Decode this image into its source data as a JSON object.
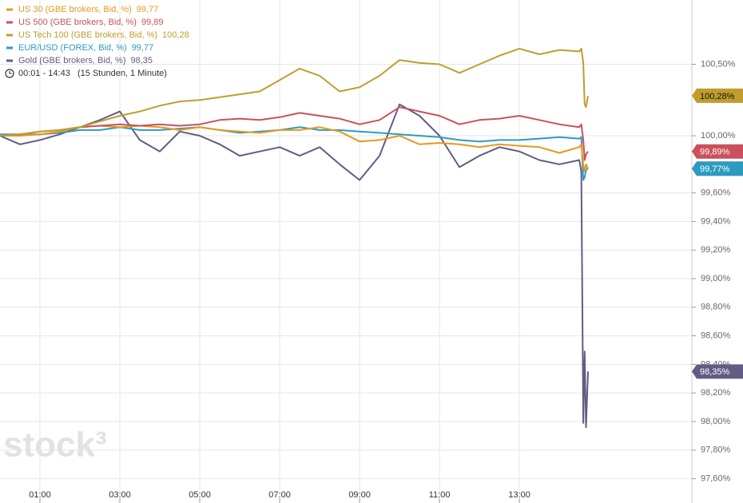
{
  "chart_data": {
    "type": "line",
    "time_range": "00:01 - 14:43",
    "time_span": "(15 Stunden, 1 Minute)",
    "watermark": "stock³",
    "x": [
      "00:00",
      "00:30",
      "01:00",
      "01:30",
      "02:00",
      "02:30",
      "03:00",
      "03:30",
      "04:00",
      "04:30",
      "05:00",
      "05:30",
      "06:00",
      "06:30",
      "07:00",
      "07:30",
      "08:00",
      "08:30",
      "09:00",
      "09:30",
      "10:00",
      "10:30",
      "11:00",
      "11:30",
      "12:00",
      "12:30",
      "13:00",
      "13:30",
      "14:00",
      "14:30",
      "14:33",
      "14:36",
      "14:38",
      "14:40",
      "14:43"
    ],
    "xlim": [
      "00:00",
      "17:19"
    ],
    "xticks": [
      "01:00",
      "03:00",
      "05:00",
      "07:00",
      "09:00",
      "11:00",
      "13:00"
    ],
    "ylim": [
      97.43,
      100.95
    ],
    "yticks": [
      {
        "value": 100.5,
        "label": "100,50%"
      },
      {
        "value": 100,
        "label": "100,00%"
      },
      {
        "value": 99.6,
        "label": "99,60%"
      },
      {
        "value": 99.4,
        "label": "99,40%"
      },
      {
        "value": 99.2,
        "label": "99,20%"
      },
      {
        "value": 99,
        "label": "99,00%"
      },
      {
        "value": 98.8,
        "label": "98,80%"
      },
      {
        "value": 98.6,
        "label": "98,60%"
      },
      {
        "value": 98.4,
        "label": "98,40%"
      },
      {
        "value": 98.2,
        "label": "98,20%"
      },
      {
        "value": 98,
        "label": "98,00%"
      },
      {
        "value": 97.8,
        "label": "97,80%"
      },
      {
        "value": 97.6,
        "label": "97,60%"
      }
    ],
    "grid": true,
    "series": [
      {
        "name": "US 30 (GBE brokers, Bid, %)",
        "legend_value": "99,77",
        "badge": "99,77%",
        "color": "#e8981e",
        "values": [
          100,
          100,
          100.01,
          100.03,
          100.06,
          100.07,
          100.06,
          100.07,
          100.06,
          100.04,
          100.06,
          100.04,
          100.03,
          100.02,
          100.04,
          100.04,
          100.06,
          100.03,
          99.96,
          99.97,
          100,
          99.94,
          99.95,
          99.94,
          99.92,
          99.94,
          99.93,
          99.92,
          99.88,
          99.92,
          99.94,
          99.8,
          99.75,
          99.8,
          99.77
        ]
      },
      {
        "name": "US 500 (GBE brokers, Bid, %)",
        "legend_value": "99,89",
        "badge": "99,89%",
        "color": "#c9505c",
        "values": [
          100,
          100.01,
          100.03,
          100.04,
          100.06,
          100.07,
          100.08,
          100.07,
          100.08,
          100.07,
          100.08,
          100.11,
          100.12,
          100.11,
          100.13,
          100.16,
          100.14,
          100.12,
          100.08,
          100.11,
          100.2,
          100.17,
          100.14,
          100.08,
          100.11,
          100.12,
          100.14,
          100.11,
          100.08,
          100.06,
          100.08,
          99.97,
          99.83,
          99.87,
          99.89
        ]
      },
      {
        "name": "US Tech 100 (GBE brokers, Bid, %)",
        "legend_value": "100,28",
        "badge": "100,28%",
        "color": "#bf9e2e",
        "values": [
          100,
          100.01,
          100.03,
          100.04,
          100.06,
          100.1,
          100.14,
          100.17,
          100.21,
          100.24,
          100.25,
          100.27,
          100.29,
          100.31,
          100.39,
          100.47,
          100.42,
          100.31,
          100.34,
          100.42,
          100.53,
          100.51,
          100.5,
          100.44,
          100.5,
          100.56,
          100.61,
          100.57,
          100.6,
          100.59,
          100.61,
          100.51,
          100.22,
          100.2,
          100.28
        ]
      },
      {
        "name": "EUR/USD (FOREX, Bid, %)",
        "legend_value": "99,77",
        "badge": "99,77%",
        "color": "#2b9cc0",
        "values": [
          100.01,
          100.01,
          100.01,
          100.02,
          100.04,
          100.04,
          100.06,
          100.04,
          100.04,
          100.05,
          100.06,
          100.04,
          100.02,
          100.03,
          100.04,
          100.06,
          100.04,
          100.04,
          100.03,
          100.02,
          100.01,
          100,
          99.99,
          99.97,
          99.96,
          99.97,
          99.97,
          99.98,
          99.99,
          99.98,
          99.99,
          99.69,
          99.71,
          99.76,
          99.77
        ]
      },
      {
        "name": "Gold (GBE brokers, Bid, %)",
        "legend_value": "98,35",
        "badge": "98,35%",
        "color": "#625c84",
        "values": [
          100,
          99.94,
          99.97,
          100.01,
          100.06,
          100.11,
          100.17,
          99.97,
          99.89,
          100.03,
          100,
          99.94,
          99.86,
          99.89,
          99.92,
          99.86,
          99.92,
          99.8,
          99.69,
          99.86,
          100.22,
          100.14,
          100,
          99.78,
          99.86,
          99.92,
          99.89,
          99.83,
          99.8,
          99.83,
          99.75,
          97.99,
          98.49,
          97.96,
          98.35
        ]
      }
    ]
  }
}
